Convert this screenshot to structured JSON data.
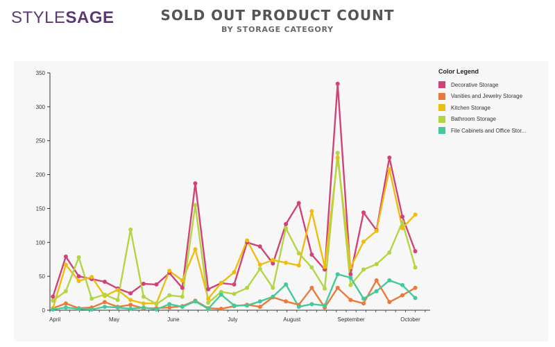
{
  "brand": {
    "logo_light": "STYLE",
    "logo_bold": "SAGE"
  },
  "header": {
    "title": "SOLD OUT PRODUCT COUNT",
    "subtitle": "BY STORAGE CATEGORY"
  },
  "legend": {
    "title": "Color Legend",
    "items": [
      {
        "label": "Decorative Storage",
        "color": "#d14278"
      },
      {
        "label": "Vanities and Jewelry Storage",
        "color": "#ea7a3c"
      },
      {
        "label": "Kitchen Storage",
        "color": "#eebd12"
      },
      {
        "label": "Bathroom Storage",
        "color": "#b3d544"
      },
      {
        "label": "File Cabinets and Office Stor...",
        "color": "#46c89a"
      }
    ]
  },
  "chart_data": {
    "type": "line",
    "x_axis_labels": [
      "April",
      "May",
      "June",
      "July",
      "August",
      "September",
      "October"
    ],
    "x_label_positions_week": [
      0.5,
      6.5,
      12.5,
      18.5,
      24.5,
      30.5,
      36.5
    ],
    "ylim": [
      0,
      350
    ],
    "yticks": [
      0,
      50,
      100,
      150,
      200,
      250,
      300,
      350
    ],
    "grid": false,
    "legend_position": "right",
    "week_range": [
      0,
      38.5
    ],
    "series": [
      {
        "name": "Decorative Storage",
        "color": "#d14278",
        "values": [
          20,
          79,
          50,
          46,
          42,
          32,
          25,
          39,
          38,
          55,
          33,
          187,
          31,
          40,
          38,
          100,
          94,
          69,
          127,
          158,
          82,
          60,
          334,
          53,
          144,
          118,
          225,
          138,
          87
        ]
      },
      {
        "name": "Vanities and Jewelry Storage",
        "color": "#ea7a3c",
        "values": [
          3,
          10,
          3,
          4,
          12,
          5,
          8,
          3,
          3,
          4,
          6,
          14,
          3,
          2,
          6,
          8,
          5,
          19,
          13,
          8,
          33,
          4,
          33,
          15,
          10,
          44,
          12,
          22,
          33
        ]
      },
      {
        "name": "Kitchen Storage",
        "color": "#eebd12",
        "values": [
          3,
          67,
          43,
          49,
          21,
          30,
          15,
          10,
          10,
          58,
          44,
          90,
          17,
          40,
          56,
          103,
          67,
          74,
          70,
          66,
          146,
          64,
          225,
          63,
          101,
          117,
          208,
          121,
          141
        ]
      },
      {
        "name": "Bathroom Storage",
        "color": "#b3d544",
        "values": [
          14,
          28,
          78,
          17,
          23,
          15,
          119,
          20,
          9,
          22,
          20,
          155,
          11,
          27,
          24,
          33,
          61,
          33,
          121,
          84,
          63,
          32,
          232,
          37,
          60,
          68,
          85,
          130,
          63
        ]
      },
      {
        "name": "File Cabinets and Office Stor...",
        "color": "#46c89a",
        "values": [
          1,
          4,
          2,
          1,
          5,
          4,
          2,
          4,
          1,
          9,
          5,
          13,
          2,
          23,
          7,
          7,
          13,
          20,
          38,
          5,
          9,
          7,
          53,
          48,
          17,
          28,
          44,
          37,
          18
        ]
      }
    ]
  }
}
